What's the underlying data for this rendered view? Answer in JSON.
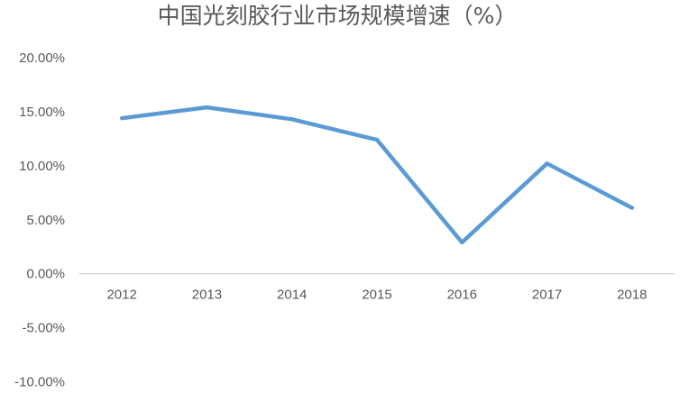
{
  "chart_data": {
    "type": "line",
    "title": "中国光刻胶行业市场规模增速（%）",
    "xlabel": "",
    "ylabel": "",
    "categories": [
      "2012",
      "2013",
      "2014",
      "2015",
      "2016",
      "2017",
      "2018"
    ],
    "series": [
      {
        "values": [
          14.4,
          15.4,
          14.3,
          12.4,
          2.9,
          10.2,
          6.1
        ],
        "color": "#5B9BD5"
      }
    ],
    "ylim": [
      -10,
      20
    ],
    "yticks": [
      20,
      15,
      10,
      5,
      0,
      -5,
      -10
    ],
    "ytick_labels": [
      "20.00%",
      "15.00%",
      "10.00%",
      "5.00%",
      "0.00%",
      "-5.00%",
      "-10.00%"
    ],
    "grid": false,
    "legend": "none",
    "axis_color": "#D9D9D9"
  }
}
